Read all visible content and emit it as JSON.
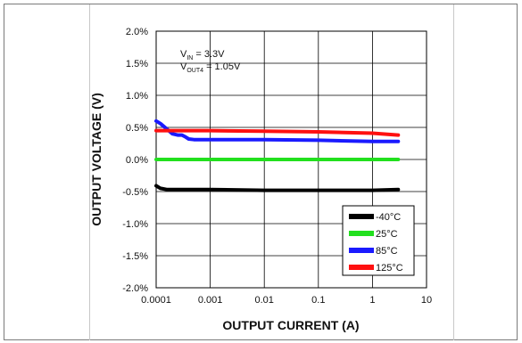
{
  "chart_data": {
    "type": "line",
    "xlabel": "OUTPUT CURRENT (A)",
    "ylabel": "OUTPUT VOLTAGE (V)",
    "xscale": "log",
    "xlim": [
      0.0001,
      10
    ],
    "ylim": [
      -2.0,
      2.0
    ],
    "x_ticks": [
      "0.0001",
      "0.001",
      "0.01",
      "0.1",
      "1",
      "10"
    ],
    "y_ticks": [
      "2.0%",
      "1.5%",
      "1.0%",
      "0.5%",
      "0.0%",
      "-0.5%",
      "-1.0%",
      "-1.5%",
      "-2.0%"
    ],
    "grid": true,
    "legend_position": "bottom-right",
    "annotation": {
      "line1": {
        "main": "V",
        "sub": "IN",
        "rest": " = 3.3V"
      },
      "line2": {
        "main": "V",
        "sub": "OUT4",
        "rest": " = 1.05V"
      }
    },
    "series": [
      {
        "name": "-40°C",
        "color": "#000000",
        "x": [
          0.0001,
          0.00012,
          0.00016,
          0.0002,
          0.0005,
          0.001,
          0.01,
          0.1,
          1,
          3
        ],
        "y": [
          -0.41,
          -0.45,
          -0.47,
          -0.47,
          -0.47,
          -0.47,
          -0.48,
          -0.48,
          -0.48,
          -0.47
        ]
      },
      {
        "name": "25°C",
        "color": "#22e01e",
        "x": [
          0.0001,
          0.001,
          0.01,
          0.1,
          1,
          3
        ],
        "y": [
          0.0,
          0.0,
          0.0,
          0.0,
          0.0,
          0.0
        ]
      },
      {
        "name": "85°C",
        "color": "#1a1aff",
        "x": [
          0.0001,
          0.00012,
          0.00016,
          0.0002,
          0.00025,
          0.0003,
          0.00035,
          0.0004,
          0.0005,
          0.001,
          0.01,
          0.1,
          1,
          3
        ],
        "y": [
          0.6,
          0.56,
          0.47,
          0.4,
          0.38,
          0.38,
          0.35,
          0.32,
          0.31,
          0.31,
          0.31,
          0.3,
          0.28,
          0.28
        ]
      },
      {
        "name": "125°C",
        "color": "#ff1010",
        "x": [
          0.0001,
          0.001,
          0.01,
          0.1,
          1,
          3
        ],
        "y": [
          0.45,
          0.45,
          0.44,
          0.43,
          0.41,
          0.38
        ]
      }
    ]
  }
}
